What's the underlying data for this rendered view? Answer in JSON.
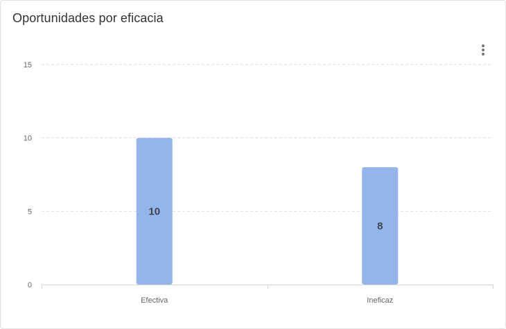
{
  "card": {
    "title": "Oportunidades por eficacia"
  },
  "menu": {
    "icon": "more-vertical-icon"
  },
  "colors": {
    "bar": "#93b5ea",
    "grid": "#dddddd",
    "axis": "#d6d6d6"
  },
  "chart_data": {
    "type": "bar",
    "title": "Oportunidades por eficacia",
    "categories": [
      "Efectiva",
      "Ineficaz"
    ],
    "values": [
      10,
      8
    ],
    "data_labels": [
      "10",
      "8"
    ],
    "xlabel": "",
    "ylabel": "",
    "ylim": [
      0,
      15
    ],
    "yticks": [
      0,
      5,
      10,
      15
    ],
    "grid": true,
    "legend": "none"
  }
}
